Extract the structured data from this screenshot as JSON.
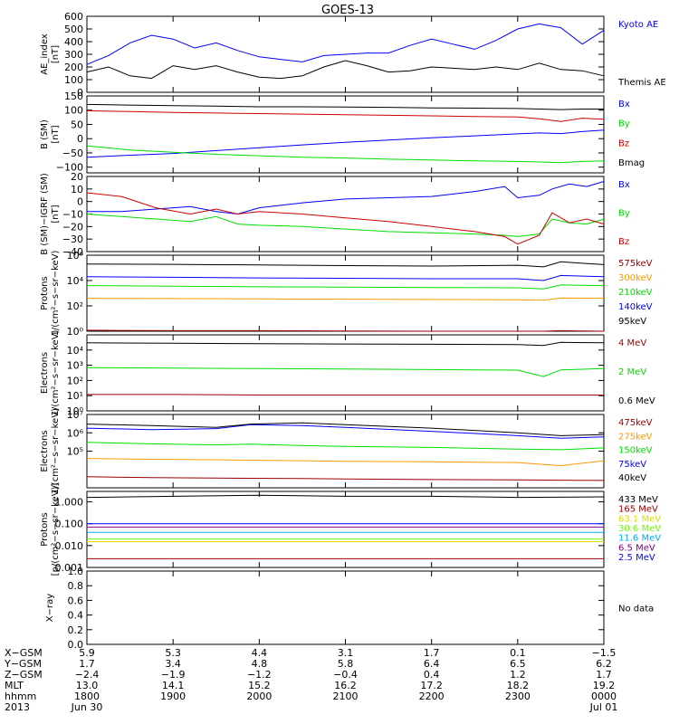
{
  "title": "GOES-13",
  "colors": {
    "black": "#000000",
    "blue": "#0000ff",
    "red": "#cc0000",
    "green": "#00dd00",
    "orange": "#ff9900",
    "dkred": "#990000",
    "magenta": "#880088",
    "cyan": "#00aaff",
    "yellow": "#dddd00",
    "ltgreen": "#66ff00"
  },
  "chart_data": [
    {
      "type": "line",
      "ylabel": [
        "AE_index",
        "[nT]"
      ],
      "ylim": [
        0,
        600
      ],
      "yscale": "linear",
      "yticks": [
        0,
        100,
        200,
        300,
        400,
        500,
        600
      ],
      "yticklabels": [
        "0",
        "100",
        "200",
        "300",
        "400",
        "500",
        "600"
      ],
      "x": [
        0,
        0.25,
        0.5,
        0.75,
        1,
        1.25,
        1.5,
        1.75,
        2,
        2.25,
        2.5,
        2.75,
        3,
        3.25,
        3.5,
        3.75,
        4,
        4.25,
        4.5,
        4.75,
        5,
        5.25,
        5.5,
        5.75,
        6
      ],
      "series": [
        {
          "name": "Kyoto AE",
          "color": "blue",
          "values": [
            220,
            290,
            390,
            450,
            420,
            350,
            390,
            330,
            280,
            260,
            240,
            290,
            300,
            310,
            310,
            370,
            420,
            380,
            340,
            410,
            500,
            540,
            510,
            380,
            490
          ]
        },
        {
          "name": "Themis AE",
          "color": "black",
          "values": [
            160,
            200,
            130,
            110,
            210,
            180,
            210,
            160,
            120,
            110,
            130,
            200,
            250,
            210,
            160,
            170,
            200,
            190,
            180,
            200,
            180,
            230,
            180,
            170,
            130
          ]
        }
      ]
    },
    {
      "type": "line",
      "ylabel": [
        "B (SM)",
        "[nT]"
      ],
      "ylim": [
        -120,
        150
      ],
      "yscale": "linear",
      "yticks": [
        -100,
        -50,
        0,
        50,
        100,
        150
      ],
      "yticklabels": [
        "−100",
        "−50",
        "0",
        "50",
        "100",
        "150"
      ],
      "x": [
        0,
        0.5,
        1,
        1.5,
        2,
        2.5,
        3,
        3.5,
        4,
        4.5,
        5,
        5.25,
        5.5,
        5.75,
        6
      ],
      "series": [
        {
          "name": "Bx",
          "color": "blue",
          "values": [
            -65,
            -58,
            -52,
            -42,
            -32,
            -22,
            -13,
            -5,
            3,
            10,
            17,
            20,
            18,
            25,
            30
          ]
        },
        {
          "name": "By",
          "color": "green",
          "values": [
            -25,
            -40,
            -48,
            -55,
            -60,
            -65,
            -68,
            -72,
            -75,
            -78,
            -80,
            -82,
            -84,
            -80,
            -78
          ]
        },
        {
          "name": "Bz",
          "color": "red",
          "values": [
            98,
            95,
            92,
            90,
            88,
            86,
            84,
            82,
            80,
            78,
            76,
            70,
            60,
            72,
            68
          ]
        },
        {
          "name": "Bmag",
          "color": "black",
          "values": [
            120,
            118,
            116,
            114,
            112,
            112,
            111,
            110,
            108,
            107,
            106,
            104,
            102,
            104,
            104
          ]
        }
      ]
    },
    {
      "type": "line",
      "ylabel": [
        "B (SM)−IGRF (SM)",
        "[nT]"
      ],
      "ylim": [
        -40,
        20
      ],
      "yscale": "linear",
      "yticks": [
        -40,
        -30,
        -20,
        -10,
        0,
        10,
        20
      ],
      "yticklabels": [
        "−40",
        "−30",
        "−20",
        "−10",
        "0",
        "10",
        "20"
      ],
      "x": [
        0,
        0.4,
        0.8,
        1.2,
        1.5,
        1.75,
        2,
        2.5,
        3,
        3.5,
        4,
        4.5,
        4.85,
        5,
        5.25,
        5.4,
        5.6,
        5.8,
        6
      ],
      "series": [
        {
          "name": "Bx",
          "color": "blue",
          "values": [
            -8,
            -8,
            -6,
            -4,
            -8,
            -10,
            -5,
            -1,
            2,
            3,
            4,
            8,
            12,
            3,
            5,
            10,
            14,
            12,
            16
          ]
        },
        {
          "name": "By",
          "color": "green",
          "values": [
            -10,
            -12,
            -14,
            -16,
            -12,
            -18,
            -19,
            -20,
            -22,
            -24,
            -25,
            -26,
            -27,
            -28,
            -26,
            -14,
            -17,
            -18,
            -14
          ]
        },
        {
          "name": "Bz",
          "color": "red",
          "values": [
            7,
            4,
            -5,
            -10,
            -6,
            -10,
            -8,
            -10,
            -13,
            -16,
            -20,
            -24,
            -28,
            -34,
            -27,
            -9,
            -17,
            -14,
            -18
          ]
        }
      ]
    },
    {
      "type": "line",
      "ylabel": [
        "Protons",
        "1/(cm²−s−sr−keV)"
      ],
      "ylim": [
        1,
        1000000
      ],
      "yscale": "log",
      "yticks": [
        1,
        100,
        10000,
        1000000
      ],
      "yticklabels": [
        "10⁰",
        "10²",
        "10⁴",
        "10⁶"
      ],
      "x": [
        0,
        1,
        2,
        3,
        4,
        5,
        5.3,
        5.5,
        6
      ],
      "series": [
        {
          "name": "575keV",
          "color": "dkred",
          "values": [
            1.2,
            1.1,
            1.1,
            1.05,
            1.0,
            1.0,
            1.0,
            1.1,
            1.0
          ]
        },
        {
          "name": "300keV",
          "color": "orange",
          "values": [
            400,
            380,
            360,
            340,
            320,
            300,
            280,
            420,
            400
          ]
        },
        {
          "name": "210keV",
          "color": "green",
          "values": [
            4000,
            3600,
            3200,
            3000,
            2800,
            2700,
            2200,
            4500,
            4000
          ]
        },
        {
          "name": "140keV",
          "color": "blue",
          "values": [
            20000,
            18000,
            16000,
            15000,
            14000,
            14000,
            10000,
            25000,
            20000
          ]
        },
        {
          "name": "95keV",
          "color": "black",
          "values": [
            200000,
            190000,
            170000,
            150000,
            140000,
            160000,
            120000,
            300000,
            180000
          ]
        }
      ]
    },
    {
      "type": "line",
      "ylabel": [
        "Electrons",
        "1/(cm²−s−sr−keV)"
      ],
      "ylim": [
        1,
        100000
      ],
      "yscale": "log",
      "yticks": [
        1,
        10,
        100,
        1000,
        10000
      ],
      "yticklabels": [
        "10⁰",
        "10¹",
        "10²",
        "10³",
        "10⁴"
      ],
      "x": [
        0,
        1,
        2,
        3,
        4,
        5,
        5.3,
        5.5,
        6
      ],
      "series": [
        {
          "name": "4 MeV",
          "color": "dkred",
          "values": [
            12,
            12,
            11,
            11,
            11,
            11,
            11,
            11,
            11
          ]
        },
        {
          "name": "2 MeV",
          "color": "green",
          "values": [
            700,
            650,
            600,
            560,
            520,
            480,
            180,
            500,
            600
          ]
        },
        {
          "name": "0.6 MeV",
          "color": "black",
          "values": [
            30000,
            28000,
            26000,
            25000,
            24000,
            23000,
            20000,
            32000,
            30000
          ]
        }
      ]
    },
    {
      "type": "line",
      "ylabel": [
        "Electrons",
        "1/(cm²−s−sr−keV)"
      ],
      "ylim": [
        1000,
        10000000
      ],
      "yscale": "log",
      "yticks": [
        100000,
        1000000,
        10000000
      ],
      "yticklabels": [
        "10⁵",
        "10⁶",
        "10⁷"
      ],
      "x": [
        0,
        0.75,
        1.5,
        1.9,
        2.5,
        3,
        4,
        5,
        5.5,
        6
      ],
      "series": [
        {
          "name": "475keV",
          "color": "dkred",
          "values": [
            4000,
            3600,
            3400,
            3300,
            3200,
            3000,
            2800,
            2700,
            2600,
            2500
          ]
        },
        {
          "name": "275keV",
          "color": "orange",
          "values": [
            40000,
            36000,
            34000,
            32000,
            30000,
            28000,
            26000,
            24000,
            16000,
            30000
          ]
        },
        {
          "name": "150keV",
          "color": "green",
          "values": [
            300000,
            250000,
            220000,
            240000,
            200000,
            180000,
            160000,
            130000,
            120000,
            150000
          ]
        },
        {
          "name": "75keV",
          "color": "blue",
          "values": [
            1800000,
            1500000,
            1700000,
            2800000,
            2500000,
            2000000,
            1200000,
            700000,
            500000,
            600000
          ]
        },
        {
          "name": "40keV",
          "color": "black",
          "values": [
            3000000,
            2500000,
            2000000,
            3000000,
            3500000,
            2800000,
            1800000,
            1000000,
            700000,
            800000
          ]
        }
      ]
    },
    {
      "type": "line",
      "ylabel": [
        "Protons",
        "[p/(cm²−s−sr−keV)]"
      ],
      "ylim": [
        0.001,
        3
      ],
      "yscale": "log",
      "yticks": [
        0.001,
        0.01,
        0.1,
        1
      ],
      "yticklabels": [
        "0.001",
        "0.010",
        "0.100",
        "1.000"
      ],
      "x": [
        0,
        1,
        2,
        3,
        4,
        5,
        6
      ],
      "series": [
        {
          "name": "433 MeV",
          "color": "black",
          "values": [
            1.6,
            1.8,
            2.0,
            1.8,
            1.8,
            1.6,
            1.7
          ]
        },
        {
          "name": "165 MeV",
          "color": "dkred",
          "values": [
            0.0025,
            0.0025,
            0.0025,
            0.0025,
            0.0025,
            0.0025,
            0.0025
          ]
        },
        {
          "name": "63.1 MeV",
          "color": "yellow",
          "values": [
            0.015,
            0.015,
            0.015,
            0.015,
            0.015,
            0.015,
            0.015
          ]
        },
        {
          "name": "30.6 MeV",
          "color": "ltgreen",
          "values": [
            0.02,
            0.02,
            0.02,
            0.02,
            0.02,
            0.02,
            0.02
          ]
        },
        {
          "name": "11.6 MeV",
          "color": "cyan",
          "values": [
            0.04,
            0.04,
            0.04,
            0.04,
            0.04,
            0.04,
            0.04
          ]
        },
        {
          "name": "6.5 MeV",
          "color": "magenta",
          "values": [
            0.07,
            0.07,
            0.07,
            0.07,
            0.07,
            0.07,
            0.07
          ]
        },
        {
          "name": "2.5 MeV",
          "color": "blue",
          "values": [
            0.1,
            0.1,
            0.1,
            0.1,
            0.1,
            0.1,
            0.1
          ]
        }
      ]
    },
    {
      "type": "line",
      "ylabel": [
        "X−ray"
      ],
      "ylim": [
        0,
        1
      ],
      "yscale": "linear",
      "yticks": [
        0,
        0.2,
        0.4,
        0.6,
        0.8,
        1
      ],
      "yticklabels": [
        "0.0",
        "0.2",
        "0.4",
        "0.6",
        "0.8",
        "1.0"
      ],
      "x": [],
      "series": [],
      "note": "No data"
    }
  ],
  "xaxis": {
    "ticks": [
      0,
      1,
      2,
      3,
      4,
      5,
      6
    ],
    "rows": [
      {
        "label": "X−GSM",
        "values": [
          "5.9",
          "5.3",
          "4.4",
          "3.1",
          "1.7",
          "0.1",
          "−1.5"
        ]
      },
      {
        "label": "Y−GSM",
        "values": [
          "1.7",
          "3.4",
          "4.8",
          "5.8",
          "6.4",
          "6.5",
          "6.2"
        ]
      },
      {
        "label": "Z−GSM",
        "values": [
          "−2.4",
          "−1.9",
          "−1.2",
          "−0.4",
          "0.4",
          "1.2",
          "1.7"
        ]
      },
      {
        "label": "MLT",
        "values": [
          "13.0",
          "14.1",
          "15.2",
          "16.2",
          "17.2",
          "18.2",
          "19.2"
        ]
      },
      {
        "label": "hhmm",
        "values": [
          "1800",
          "1900",
          "2000",
          "2100",
          "2200",
          "2300",
          "0000"
        ]
      },
      {
        "label": "2013",
        "values": [
          "Jun 30",
          "",
          "",
          "",
          "",
          "",
          "Jul 01"
        ]
      }
    ]
  }
}
